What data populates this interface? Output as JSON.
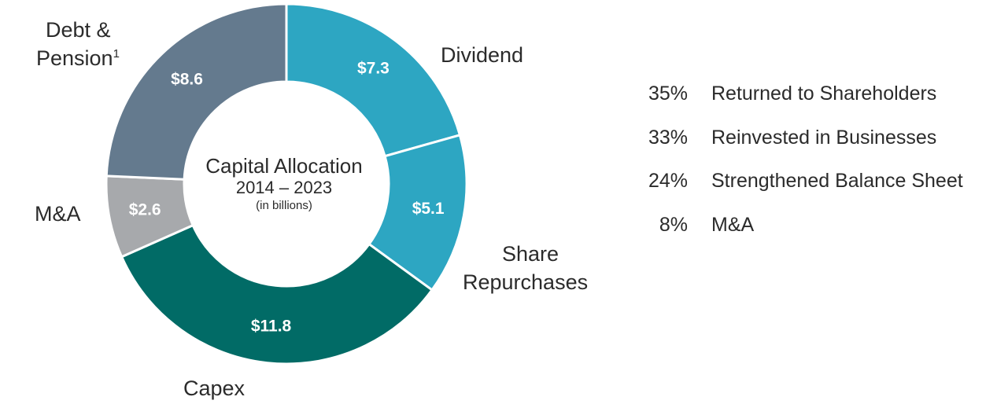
{
  "chart_data": {
    "type": "pie",
    "title": "Capital Allocation",
    "subtitle": "2014 – 2023",
    "unit_note": "(in billions)",
    "slices": [
      {
        "label": "Dividend",
        "value": 7.3,
        "display": "$7.3",
        "color": "#2da6c2"
      },
      {
        "label": "Share Repurchases",
        "value": 5.1,
        "display": "$5.1",
        "color": "#2da6c2"
      },
      {
        "label": "Capex",
        "value": 11.8,
        "display": "$11.8",
        "color": "#016b66"
      },
      {
        "label": "M&A",
        "value": 2.6,
        "display": "$2.6",
        "color": "#a7a9ac"
      },
      {
        "label": "Debt & Pension",
        "value": 8.6,
        "display": "$8.6",
        "color": "#647a8e"
      }
    ]
  },
  "labels": {
    "dividend": "Dividend",
    "share_line1": "Share",
    "share_line2": "Repurchases",
    "capex": "Capex",
    "ma": "M&A",
    "debt_line1": "Debt &",
    "debt_line2": "Pension",
    "debt_footnote": "1"
  },
  "summary": [
    {
      "pct": "35%",
      "text": "Returned to Shareholders"
    },
    {
      "pct": "33%",
      "text": "Reinvested in Businesses"
    },
    {
      "pct": "24%",
      "text": "Strengthened Balance Sheet"
    },
    {
      "pct": "8%",
      "text": "M&A"
    }
  ]
}
